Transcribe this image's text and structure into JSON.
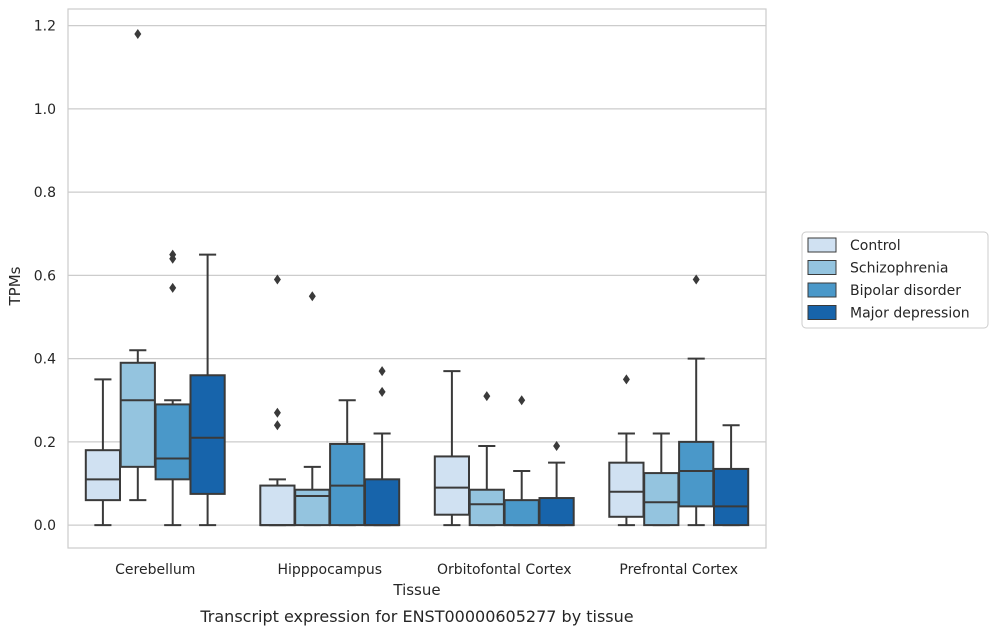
{
  "chart_data": {
    "type": "box",
    "title": "Transcript expression for ENST00000605277 by tissue",
    "xlabel": "Tissue",
    "ylabel": "TPMs",
    "ylim": [
      -0.055,
      1.24
    ],
    "yticks": [
      0.0,
      0.2,
      0.4,
      0.6,
      0.8,
      1.0,
      1.2
    ],
    "ytick_labels": [
      "0.0",
      "0.2",
      "0.4",
      "0.6",
      "0.8",
      "1.0",
      "1.2"
    ],
    "grid": "horizontal",
    "legend_position": "right",
    "categories": [
      "Cerebellum",
      "Hipppocampus",
      "Orbitofontal Cortex",
      "Prefrontal Cortex"
    ],
    "series": [
      {
        "name": "Control",
        "color": "#d0e1f2",
        "boxes": [
          {
            "whisker_low": 0.0,
            "q1": 0.06,
            "median": 0.11,
            "q3": 0.18,
            "whisker_high": 0.35,
            "outliers": []
          },
          {
            "whisker_low": 0.0,
            "q1": 0.0,
            "median": 0.0,
            "q3": 0.095,
            "whisker_high": 0.11,
            "outliers": [
              0.24,
              0.27,
              0.59
            ]
          },
          {
            "whisker_low": 0.0,
            "q1": 0.025,
            "median": 0.09,
            "q3": 0.165,
            "whisker_high": 0.37,
            "outliers": []
          },
          {
            "whisker_low": 0.0,
            "q1": 0.02,
            "median": 0.08,
            "q3": 0.15,
            "whisker_high": 0.22,
            "outliers": [
              0.35
            ]
          }
        ]
      },
      {
        "name": "Schizophrenia",
        "color": "#94c4df",
        "boxes": [
          {
            "whisker_low": 0.06,
            "q1": 0.14,
            "median": 0.3,
            "q3": 0.39,
            "whisker_high": 0.42,
            "outliers": [
              1.18
            ]
          },
          {
            "whisker_low": 0.0,
            "q1": 0.0,
            "median": 0.07,
            "q3": 0.085,
            "whisker_high": 0.14,
            "outliers": [
              0.55
            ]
          },
          {
            "whisker_low": 0.0,
            "q1": 0.0,
            "median": 0.05,
            "q3": 0.085,
            "whisker_high": 0.19,
            "outliers": [
              0.31
            ]
          },
          {
            "whisker_low": 0.0,
            "q1": 0.0,
            "median": 0.055,
            "q3": 0.125,
            "whisker_high": 0.22,
            "outliers": []
          }
        ]
      },
      {
        "name": "Bipolar disorder",
        "color": "#4a98c9",
        "boxes": [
          {
            "whisker_low": 0.0,
            "q1": 0.11,
            "median": 0.16,
            "q3": 0.29,
            "whisker_high": 0.3,
            "outliers": [
              0.57,
              0.64,
              0.65
            ]
          },
          {
            "whisker_low": 0.0,
            "q1": 0.0,
            "median": 0.095,
            "q3": 0.195,
            "whisker_high": 0.3,
            "outliers": []
          },
          {
            "whisker_low": 0.0,
            "q1": 0.0,
            "median": 0.0,
            "q3": 0.06,
            "whisker_high": 0.13,
            "outliers": [
              0.3
            ]
          },
          {
            "whisker_low": 0.0,
            "q1": 0.045,
            "median": 0.13,
            "q3": 0.2,
            "whisker_high": 0.4,
            "outliers": [
              0.59
            ]
          }
        ]
      },
      {
        "name": "Major depression",
        "color": "#1764ab",
        "boxes": [
          {
            "whisker_low": 0.0,
            "q1": 0.075,
            "median": 0.21,
            "q3": 0.36,
            "whisker_high": 0.65,
            "outliers": []
          },
          {
            "whisker_low": 0.0,
            "q1": 0.0,
            "median": 0.0,
            "q3": 0.11,
            "whisker_high": 0.22,
            "outliers": [
              0.32,
              0.37
            ]
          },
          {
            "whisker_low": 0.0,
            "q1": 0.0,
            "median": 0.0,
            "q3": 0.065,
            "whisker_high": 0.15,
            "outliers": [
              0.19
            ]
          },
          {
            "whisker_low": 0.0,
            "q1": 0.0,
            "median": 0.045,
            "q3": 0.135,
            "whisker_high": 0.24,
            "outliers": []
          }
        ]
      }
    ],
    "colors": {
      "grid": "#cccccc",
      "frame": "#cccccc",
      "line": "#3a3a3a"
    }
  }
}
